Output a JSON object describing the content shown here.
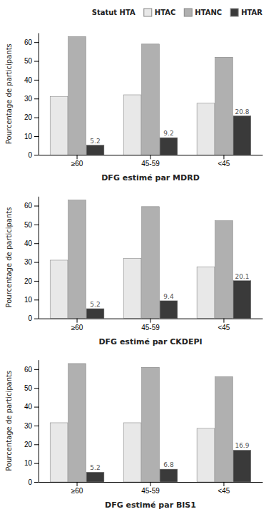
{
  "chart_data": [
    {
      "type": "bar",
      "xlabel": "DFG estimé par MDRD",
      "ylabel": "Pourcentage de participants",
      "categories": [
        "≥60",
        "45-59",
        "<45"
      ],
      "series": [
        {
          "name": "HTAC",
          "color": "#e8e8e8",
          "values": [
            31,
            32,
            27.5
          ]
        },
        {
          "name": "HTANC",
          "color": "#b0b0b0",
          "values": [
            63,
            59,
            52
          ]
        },
        {
          "name": "HTAR",
          "color": "#3a3a3a",
          "values": [
            5.2,
            9.2,
            20.8
          ],
          "data_labels": true
        }
      ],
      "ylim": [
        0,
        65
      ],
      "yticks": [
        0,
        10,
        20,
        30,
        40,
        50,
        60
      ],
      "grid": false,
      "legend": "upper right",
      "legend_title": "Statut HTA"
    },
    {
      "type": "bar",
      "xlabel": "DFG estimé par CKDEPI",
      "ylabel": "Pourcentage de participants",
      "categories": [
        "≥60",
        "45-59",
        "<45"
      ],
      "series": [
        {
          "name": "HTAC",
          "color": "#e8e8e8",
          "values": [
            31,
            32,
            27.5
          ]
        },
        {
          "name": "HTANC",
          "color": "#b0b0b0",
          "values": [
            63,
            59.5,
            52
          ]
        },
        {
          "name": "HTAR",
          "color": "#3a3a3a",
          "values": [
            5.2,
            9.4,
            20.1
          ],
          "data_labels": true
        }
      ],
      "ylim": [
        0,
        65
      ],
      "yticks": [
        0,
        10,
        20,
        30,
        40,
        50,
        60
      ],
      "grid": false
    },
    {
      "type": "bar",
      "xlabel": "DFG estimé par BIS1",
      "ylabel": "Pourcentage de participants",
      "categories": [
        "≥60",
        "45-59",
        "<45"
      ],
      "series": [
        {
          "name": "HTAC",
          "color": "#e8e8e8",
          "values": [
            31.5,
            31.5,
            28.5
          ]
        },
        {
          "name": "HTANC",
          "color": "#b0b0b0",
          "values": [
            63,
            61,
            56
          ]
        },
        {
          "name": "HTAR",
          "color": "#3a3a3a",
          "values": [
            5.2,
            6.8,
            16.9
          ],
          "data_labels": true
        }
      ],
      "ylim": [
        0,
        65
      ],
      "yticks": [
        0,
        10,
        20,
        30,
        40,
        50,
        60
      ],
      "grid": false
    }
  ]
}
